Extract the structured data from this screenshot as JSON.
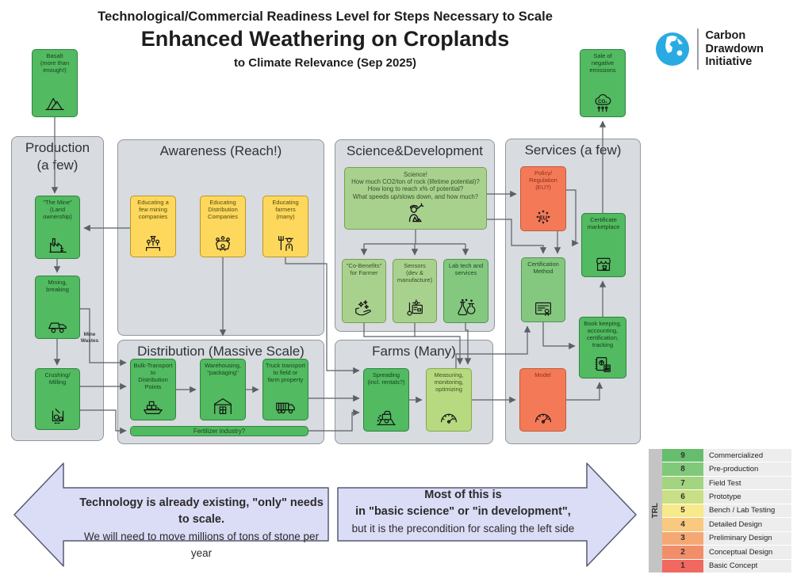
{
  "title": {
    "line1": "Technological/Commercial Readiness Level for Steps Necessary to Scale",
    "line2": "Enhanced Weathering on Croplands",
    "line3": "to Climate Relevance (Sep 2025)"
  },
  "logo": {
    "org": "Carbon\nDrawdown\nInitiative",
    "icon": "globe-icon",
    "color": "#29abe2"
  },
  "sections": {
    "production": {
      "title": "Production\n(a few)"
    },
    "awareness": {
      "title": "Awareness (Reach!)"
    },
    "science": {
      "title": "Science&Development"
    },
    "services": {
      "title": "Services (a few)"
    },
    "distribution": {
      "title": "Distribution (Massive Scale)"
    },
    "farms": {
      "title": "Farms (Many)"
    }
  },
  "nodes": {
    "basalt": {
      "label": "Basalt\n(more than enough!)",
      "icon": "mountain-icon",
      "status_color": "green"
    },
    "sale": {
      "label": "Sale of\nnegative\nemissions",
      "icon": "co2-emissions-icon",
      "status_color": "green"
    },
    "mine": {
      "label": "\"The Mine\"\n(Land ownership)",
      "icon": "mine-factory-icon",
      "status_color": "green"
    },
    "mining": {
      "label": "Mining,\nbreaking",
      "icon": "dump-truck-icon",
      "status_color": "green"
    },
    "crushing": {
      "label": "Crushing/\nMilling",
      "icon": "crusher-icon",
      "status_color": "green"
    },
    "mine_wastes": {
      "label": "Mine\nWastes"
    },
    "edu_mining": {
      "label": "Educating a\nfew mining\ncompanies",
      "icon": "meeting-people-icon",
      "status_color": "yellow"
    },
    "edu_distribution": {
      "label": "Educating\nDistribution\nCompanies",
      "icon": "boardroom-table-icon",
      "status_color": "yellow"
    },
    "edu_farmers": {
      "label": "Educating\nfarmers\n(many)",
      "icon": "farmer-pitchfork-icon",
      "status_color": "yellow"
    },
    "science_main": {
      "label": "Science!\nHow much CO2/ton of rock (lifetime potential)?\nHow long to reach x% of potential?\nWhat speeds up/slows down, and how much?",
      "icon": "scientist-icon",
      "status_color": "light-green"
    },
    "cobenefits": {
      "label": "\"Co-Benefits\"\nfor Farmer",
      "icon": "hand-sparkles-icon",
      "status_color": "light-green"
    },
    "sensors": {
      "label": "Sensors\n(dev &\nmanufacture)",
      "icon": "sensor-board-icon",
      "status_color": "light-green"
    },
    "labtech": {
      "label": "Lab tech and\nservices",
      "icon": "lab-flasks-icon",
      "status_color": "medium-green"
    },
    "policy": {
      "label": "Policy/\nRegulation\n(EU?)",
      "icon": "eu-stars-icon",
      "status_color": "red"
    },
    "certmarket": {
      "label": "Certificate\nmarketplace",
      "icon": "storefront-icon",
      "status_color": "green"
    },
    "certmethod": {
      "label": "Certification\nMethod",
      "icon": "certificate-icon",
      "status_color": "medium-green"
    },
    "bookkeeping": {
      "label": "Book keeping,\naccounting,\ncertification,\ntracking",
      "icon": "ledger-calculator-icon",
      "status_color": "green"
    },
    "model": {
      "label": "Model",
      "icon": "gauge-icon",
      "status_color": "red"
    },
    "bulk_transport": {
      "label": "Bulk-Transport\nto\nDistribution\nPoints",
      "icon": "cargo-ship-icon",
      "status_color": "green"
    },
    "warehousing": {
      "label": "Warehousing,\n\"packaging\"",
      "icon": "warehouse-icon",
      "status_color": "green"
    },
    "truck_transport": {
      "label": "Truck transport\nto field or\nfarm property",
      "icon": "truck-icon",
      "status_color": "green"
    },
    "fertilizer": {
      "label": "Fertilizer industry?",
      "status_color": "green"
    },
    "spreading": {
      "label": "Spreading\n(incl. rentals?)",
      "icon": "spreader-machine-icon",
      "status_color": "green"
    },
    "measuring": {
      "label": "Measuring,\nmonitoring,\noptimizing",
      "icon": "speedometer-icon",
      "status_color": "yellow-green"
    }
  },
  "banner_arrows": {
    "left": {
      "line1": "Technology is already existing, \"only\" needs to scale.",
      "line2": "We will need to move millions of tons of stone per year"
    },
    "right": {
      "line1": "Most of this is",
      "line2": "in \"basic science\" or \"in development\",",
      "line3": "but it is the precondition for scaling the left side"
    }
  },
  "trl": {
    "axis_label": "TRL",
    "rows": [
      {
        "level": "9",
        "name": "Commercialized",
        "color": "#66bd6b"
      },
      {
        "level": "8",
        "name": "Pre-production",
        "color": "#81c97a"
      },
      {
        "level": "7",
        "name": "Field Test",
        "color": "#a3d47f"
      },
      {
        "level": "6",
        "name": "Prototype",
        "color": "#c8df86"
      },
      {
        "level": "5",
        "name": "Bench / Lab Testing",
        "color": "#f8e98a"
      },
      {
        "level": "4",
        "name": "Detailed Design",
        "color": "#f8c97e"
      },
      {
        "level": "3",
        "name": "Preliminary Design",
        "color": "#f5a873"
      },
      {
        "level": "2",
        "name": "Conceptual Design",
        "color": "#f28e69"
      },
      {
        "level": "1",
        "name": "Basic Concept",
        "color": "#f0685f"
      }
    ]
  },
  "palette": {
    "green": "#52ba60",
    "yellow": "#fdd85c",
    "red": "#f47a57",
    "light_green": "#a9d18e",
    "medium_green": "#84c87f",
    "yellow_green": "#b7da80",
    "section_bg": "#d8dbdf",
    "banner_fill": "#dbdcf6",
    "logo_blue": "#29abe2"
  }
}
